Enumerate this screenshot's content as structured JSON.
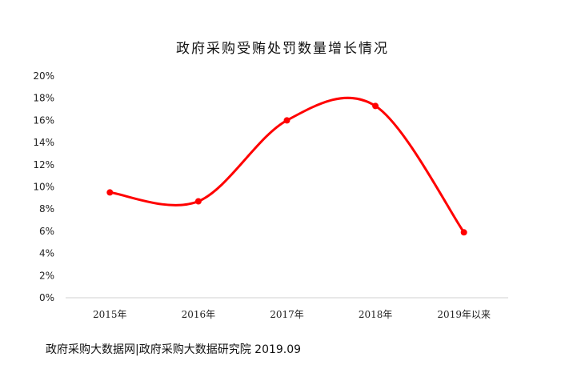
{
  "chart_data": {
    "type": "line",
    "title": "政府采购受贿处罚数量增长情况",
    "categories": [
      "2015年",
      "2016年",
      "2017年",
      "2018年",
      "2019年以来"
    ],
    "series": [
      {
        "values": [
          9.5,
          8.7,
          16.0,
          17.3,
          5.9
        ]
      }
    ],
    "ylim": [
      0,
      20
    ],
    "yticks": [
      "0%",
      "2%",
      "4%",
      "6%",
      "8%",
      "10%",
      "12%",
      "14%",
      "16%",
      "18%",
      "20%"
    ],
    "xlabel": "",
    "ylabel": "",
    "grid": false,
    "smooth": true,
    "line_color": "#ff0000"
  },
  "footer": {
    "source": "政府采购大数据网|政府采购大数据研究院 2019.09"
  }
}
